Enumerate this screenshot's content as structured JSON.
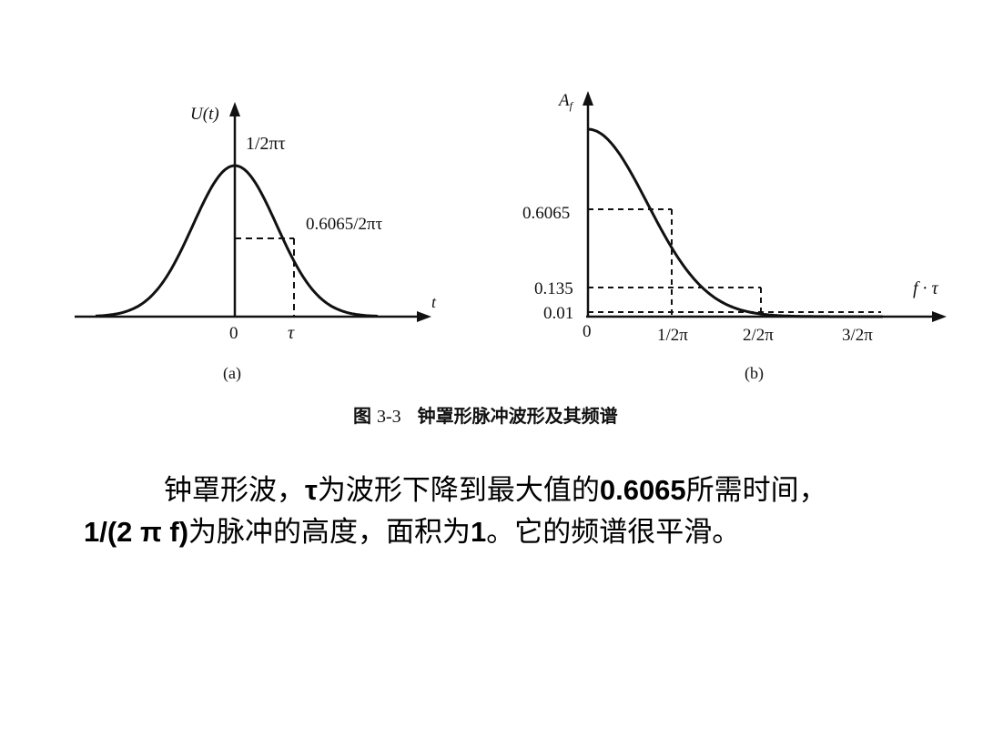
{
  "figure_a": {
    "y_label_main": "U(",
    "y_label_var": "t",
    "y_label_close": ")",
    "peak_label": "1/2πτ",
    "level_label": "0.6065/2πτ",
    "x_axis_label": "t",
    "origin_label": "0",
    "tau_label": "τ",
    "panel_label": "(a)"
  },
  "figure_b": {
    "y_label_main": "A",
    "y_label_sub": "f",
    "y_tick_1": "0.6065",
    "y_tick_2": "0.135",
    "y_tick_3": "0.01",
    "origin_label": "0",
    "x_tick_1": "1/2π",
    "x_tick_2": "2/2π",
    "x_tick_3": "3/2π",
    "x_axis_label": "f · τ",
    "panel_label": "(b)"
  },
  "caption": {
    "prefix": "图",
    "number": "3-3",
    "title": "钟罩形脉冲波形及其频谱"
  },
  "paragraph": {
    "l1_a": "钟罩形波，",
    "l1_b": "τ",
    "l1_c": "为波形下降到最大值的",
    "l1_d": "0.6065",
    "l1_e": "所需时间，",
    "l2_a": "1/(2 π f)",
    "l2_b": "为脉冲的高度，面积为",
    "l2_c": "1",
    "l2_d": "。它的频谱很平滑。"
  }
}
